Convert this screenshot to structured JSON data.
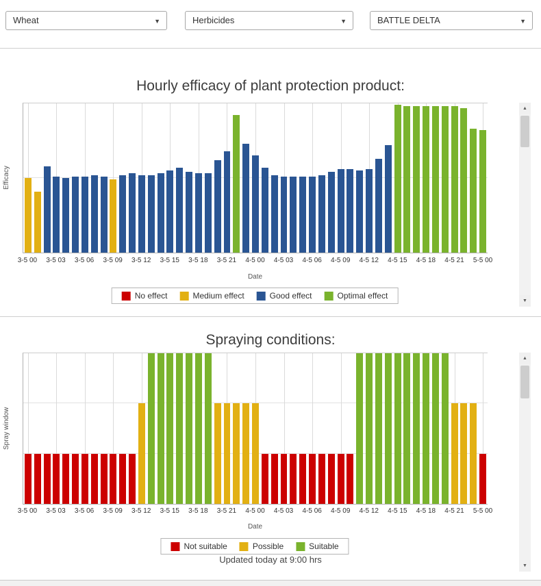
{
  "filters": {
    "crop": "Wheat",
    "category": "Herbicides",
    "product": "BATTLE DELTA"
  },
  "icons": {
    "dropdown_caret": "▼",
    "scroll_up": "▲",
    "scroll_down": "▼"
  },
  "footer": {
    "updated_text": "Updated today at 9:00 hrs"
  },
  "chart_data": [
    {
      "type": "bar",
      "title": "Hourly efficacy of plant protection product:",
      "ylabel": "Efficacy",
      "xlabel": "Date",
      "ylim": [
        0,
        1
      ],
      "grid": "vertical lines every 3 hours",
      "legend_position": "bottom",
      "hlines": [
        0.5
      ],
      "x_ticks": [
        "3-5 00",
        "3-5 03",
        "3-5 06",
        "3-5 09",
        "3-5 12",
        "3-5 15",
        "3-5 18",
        "3-5 21",
        "4-5 00",
        "4-5 03",
        "4-5 06",
        "4-5 09",
        "4-5 12",
        "4-5 15",
        "4-5 18",
        "4-5 21",
        "5-5 00"
      ],
      "colors": {
        "No effect": "#cc0000",
        "Medium effect": "#e2b013",
        "Good effect": "#2a5593",
        "Optimal effect": "#7ab32d"
      },
      "legend": [
        {
          "label": "No effect",
          "color": "#cc0000"
        },
        {
          "label": "Medium effect",
          "color": "#e2b013"
        },
        {
          "label": "Good effect",
          "color": "#2a5593"
        },
        {
          "label": "Optimal effect",
          "color": "#7ab32d"
        }
      ],
      "bars": [
        {
          "x": "3-5 00",
          "category": "Medium effect",
          "value": 0.5
        },
        {
          "x": "3-5 01",
          "category": "Medium effect",
          "value": 0.41
        },
        {
          "x": "3-5 02",
          "category": "Good effect",
          "value": 0.58
        },
        {
          "x": "3-5 03",
          "category": "Good effect",
          "value": 0.51
        },
        {
          "x": "3-5 04",
          "category": "Good effect",
          "value": 0.5
        },
        {
          "x": "3-5 05",
          "category": "Good effect",
          "value": 0.51
        },
        {
          "x": "3-5 06",
          "category": "Good effect",
          "value": 0.51
        },
        {
          "x": "3-5 07",
          "category": "Good effect",
          "value": 0.52
        },
        {
          "x": "3-5 08",
          "category": "Good effect",
          "value": 0.51
        },
        {
          "x": "3-5 09",
          "category": "Medium effect",
          "value": 0.49
        },
        {
          "x": "3-5 10",
          "category": "Good effect",
          "value": 0.52
        },
        {
          "x": "3-5 11",
          "category": "Good effect",
          "value": 0.53
        },
        {
          "x": "3-5 12",
          "category": "Good effect",
          "value": 0.52
        },
        {
          "x": "3-5 13",
          "category": "Good effect",
          "value": 0.52
        },
        {
          "x": "3-5 14",
          "category": "Good effect",
          "value": 0.53
        },
        {
          "x": "3-5 15",
          "category": "Good effect",
          "value": 0.55
        },
        {
          "x": "3-5 16",
          "category": "Good effect",
          "value": 0.57
        },
        {
          "x": "3-5 17",
          "category": "Good effect",
          "value": 0.54
        },
        {
          "x": "3-5 18",
          "category": "Good effect",
          "value": 0.53
        },
        {
          "x": "3-5 19",
          "category": "Good effect",
          "value": 0.53
        },
        {
          "x": "3-5 20",
          "category": "Good effect",
          "value": 0.62
        },
        {
          "x": "3-5 21",
          "category": "Good effect",
          "value": 0.68
        },
        {
          "x": "3-5 22",
          "category": "Optimal effect",
          "value": 0.92
        },
        {
          "x": "3-5 23",
          "category": "Good effect",
          "value": 0.73
        },
        {
          "x": "4-5 00",
          "category": "Good effect",
          "value": 0.65
        },
        {
          "x": "4-5 01",
          "category": "Good effect",
          "value": 0.57
        },
        {
          "x": "4-5 02",
          "category": "Good effect",
          "value": 0.52
        },
        {
          "x": "4-5 03",
          "category": "Good effect",
          "value": 0.51
        },
        {
          "x": "4-5 04",
          "category": "Good effect",
          "value": 0.51
        },
        {
          "x": "4-5 05",
          "category": "Good effect",
          "value": 0.51
        },
        {
          "x": "4-5 06",
          "category": "Good effect",
          "value": 0.51
        },
        {
          "x": "4-5 07",
          "category": "Good effect",
          "value": 0.52
        },
        {
          "x": "4-5 08",
          "category": "Good effect",
          "value": 0.54
        },
        {
          "x": "4-5 09",
          "category": "Good effect",
          "value": 0.56
        },
        {
          "x": "4-5 10",
          "category": "Good effect",
          "value": 0.56
        },
        {
          "x": "4-5 11",
          "category": "Good effect",
          "value": 0.55
        },
        {
          "x": "4-5 12",
          "category": "Good effect",
          "value": 0.56
        },
        {
          "x": "4-5 13",
          "category": "Good effect",
          "value": 0.63
        },
        {
          "x": "4-5 14",
          "category": "Good effect",
          "value": 0.72
        },
        {
          "x": "4-5 15",
          "category": "Optimal effect",
          "value": 0.99
        },
        {
          "x": "4-5 16",
          "category": "Optimal effect",
          "value": 0.98
        },
        {
          "x": "4-5 17",
          "category": "Optimal effect",
          "value": 0.98
        },
        {
          "x": "4-5 18",
          "category": "Optimal effect",
          "value": 0.98
        },
        {
          "x": "4-5 19",
          "category": "Optimal effect",
          "value": 0.98
        },
        {
          "x": "4-5 20",
          "category": "Optimal effect",
          "value": 0.98
        },
        {
          "x": "4-5 21",
          "category": "Optimal effect",
          "value": 0.98
        },
        {
          "x": "4-5 22",
          "category": "Optimal effect",
          "value": 0.97
        },
        {
          "x": "4-5 23",
          "category": "Optimal effect",
          "value": 0.83
        },
        {
          "x": "5-5 00",
          "category": "Optimal effect",
          "value": 0.82
        }
      ]
    },
    {
      "type": "bar",
      "title": "Spraying conditions:",
      "ylabel": "Spray window",
      "xlabel": "Date",
      "ylim": [
        0,
        1
      ],
      "grid": "vertical lines every 3 hours, horizontal lines at levels",
      "legend_position": "bottom",
      "hlines": [
        0.333,
        0.667
      ],
      "x_ticks": [
        "3-5 00",
        "3-5 03",
        "3-5 06",
        "3-5 09",
        "3-5 12",
        "3-5 15",
        "3-5 18",
        "3-5 21",
        "4-5 00",
        "4-5 03",
        "4-5 06",
        "4-5 09",
        "4-5 12",
        "4-5 15",
        "4-5 18",
        "4-5 21",
        "5-5 00"
      ],
      "colors": {
        "Not suitable": "#cc0000",
        "Possible": "#e2b013",
        "Suitable": "#7ab32d"
      },
      "legend": [
        {
          "label": "Not suitable",
          "color": "#cc0000"
        },
        {
          "label": "Possible",
          "color": "#e2b013"
        },
        {
          "label": "Suitable",
          "color": "#7ab32d"
        }
      ],
      "bars": [
        {
          "x": "3-5 00",
          "category": "Not suitable",
          "value": 0.333
        },
        {
          "x": "3-5 01",
          "category": "Not suitable",
          "value": 0.333
        },
        {
          "x": "3-5 02",
          "category": "Not suitable",
          "value": 0.333
        },
        {
          "x": "3-5 03",
          "category": "Not suitable",
          "value": 0.333
        },
        {
          "x": "3-5 04",
          "category": "Not suitable",
          "value": 0.333
        },
        {
          "x": "3-5 05",
          "category": "Not suitable",
          "value": 0.333
        },
        {
          "x": "3-5 06",
          "category": "Not suitable",
          "value": 0.333
        },
        {
          "x": "3-5 07",
          "category": "Not suitable",
          "value": 0.333
        },
        {
          "x": "3-5 08",
          "category": "Not suitable",
          "value": 0.333
        },
        {
          "x": "3-5 09",
          "category": "Not suitable",
          "value": 0.333
        },
        {
          "x": "3-5 10",
          "category": "Not suitable",
          "value": 0.333
        },
        {
          "x": "3-5 11",
          "category": "Not suitable",
          "value": 0.333
        },
        {
          "x": "3-5 12",
          "category": "Possible",
          "value": 0.667
        },
        {
          "x": "3-5 13",
          "category": "Suitable",
          "value": 1
        },
        {
          "x": "3-5 14",
          "category": "Suitable",
          "value": 1
        },
        {
          "x": "3-5 15",
          "category": "Suitable",
          "value": 1
        },
        {
          "x": "3-5 16",
          "category": "Suitable",
          "value": 1
        },
        {
          "x": "3-5 17",
          "category": "Suitable",
          "value": 1
        },
        {
          "x": "3-5 18",
          "category": "Suitable",
          "value": 1
        },
        {
          "x": "3-5 19",
          "category": "Suitable",
          "value": 1
        },
        {
          "x": "3-5 20",
          "category": "Possible",
          "value": 0.667
        },
        {
          "x": "3-5 21",
          "category": "Possible",
          "value": 0.667
        },
        {
          "x": "3-5 22",
          "category": "Possible",
          "value": 0.667
        },
        {
          "x": "3-5 23",
          "category": "Possible",
          "value": 0.667
        },
        {
          "x": "4-5 00",
          "category": "Possible",
          "value": 0.667
        },
        {
          "x": "4-5 01",
          "category": "Not suitable",
          "value": 0.333
        },
        {
          "x": "4-5 02",
          "category": "Not suitable",
          "value": 0.333
        },
        {
          "x": "4-5 03",
          "category": "Not suitable",
          "value": 0.333
        },
        {
          "x": "4-5 04",
          "category": "Not suitable",
          "value": 0.333
        },
        {
          "x": "4-5 05",
          "category": "Not suitable",
          "value": 0.333
        },
        {
          "x": "4-5 06",
          "category": "Not suitable",
          "value": 0.333
        },
        {
          "x": "4-5 07",
          "category": "Not suitable",
          "value": 0.333
        },
        {
          "x": "4-5 08",
          "category": "Not suitable",
          "value": 0.333
        },
        {
          "x": "4-5 09",
          "category": "Not suitable",
          "value": 0.333
        },
        {
          "x": "4-5 10",
          "category": "Not suitable",
          "value": 0.333
        },
        {
          "x": "4-5 11",
          "category": "Suitable",
          "value": 1
        },
        {
          "x": "4-5 12",
          "category": "Suitable",
          "value": 1
        },
        {
          "x": "4-5 13",
          "category": "Suitable",
          "value": 1
        },
        {
          "x": "4-5 14",
          "category": "Suitable",
          "value": 1
        },
        {
          "x": "4-5 15",
          "category": "Suitable",
          "value": 1
        },
        {
          "x": "4-5 16",
          "category": "Suitable",
          "value": 1
        },
        {
          "x": "4-5 17",
          "category": "Suitable",
          "value": 1
        },
        {
          "x": "4-5 18",
          "category": "Suitable",
          "value": 1
        },
        {
          "x": "4-5 19",
          "category": "Suitable",
          "value": 1
        },
        {
          "x": "4-5 20",
          "category": "Suitable",
          "value": 1
        },
        {
          "x": "4-5 21",
          "category": "Possible",
          "value": 0.667
        },
        {
          "x": "4-5 22",
          "category": "Possible",
          "value": 0.667
        },
        {
          "x": "4-5 23",
          "category": "Possible",
          "value": 0.667
        },
        {
          "x": "5-5 00",
          "category": "Not suitable",
          "value": 0.333
        }
      ]
    }
  ]
}
